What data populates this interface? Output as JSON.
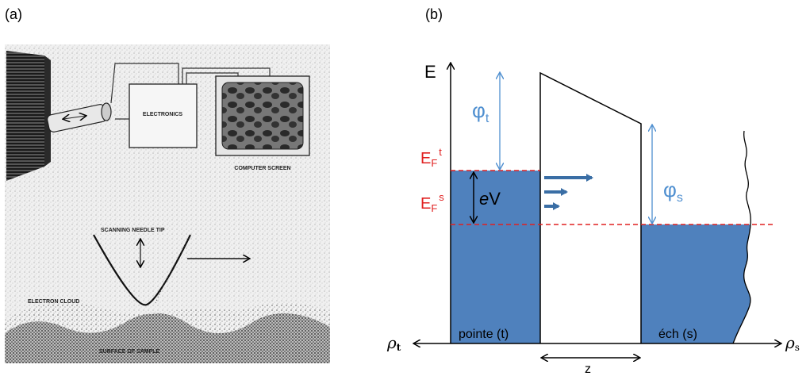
{
  "panels": {
    "a_label": "(a)",
    "b_label": "(b)"
  },
  "panel_a": {
    "electronics_label": "ELECTRONICS",
    "computer_screen_label": "COMPUTER SCREEN",
    "needle_tip_label": "SCANNING NEEDLE TIP",
    "electron_cloud_label": "ELECTRON CLOUD",
    "surface_label": "SURFACE OF SAMPLE"
  },
  "panel_b": {
    "energy_axis": "E",
    "phi_t": "φt",
    "phi_t_base": "φ",
    "phi_t_sub": "t",
    "phi_s_base": "φ",
    "phi_s_sub": "s",
    "fermi_tip_base": "E",
    "fermi_tip_sub": "F",
    "fermi_tip_sup": "t",
    "fermi_sample_base": "E",
    "fermi_sample_sub": "F",
    "fermi_sample_sup": "s",
    "bias_e": "e",
    "bias_v": "V",
    "tip_region_label": "pointe (t)",
    "sample_region_label": "éch (s)",
    "rho_t_base": "ρ",
    "rho_t_sub": "t",
    "rho_s_base": "ρ",
    "rho_s_sub": "s",
    "gap_label": "z",
    "colors": {
      "fill_blue": "#4f81bd",
      "label_blue": "#4f8fd0",
      "fermi_red": "#e02020",
      "arrow_blue": "#3a6ea5"
    }
  }
}
